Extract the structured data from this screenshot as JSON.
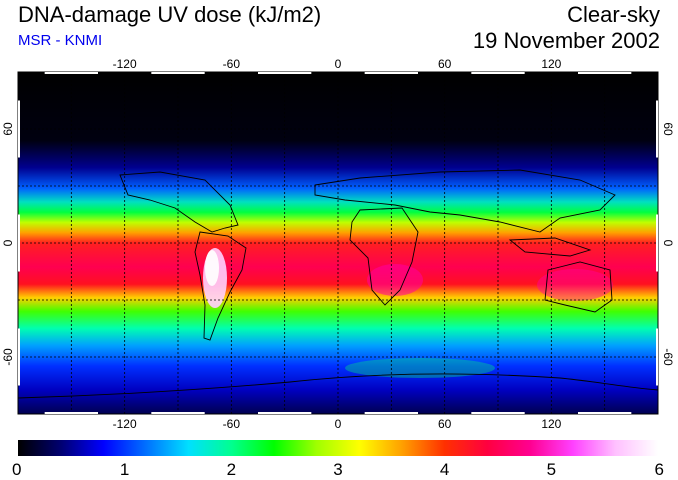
{
  "header": {
    "title": "DNA-damage UV dose (kJ/m2)",
    "source": "MSR - KNMI",
    "condition": "Clear-sky",
    "date": "19 November 2002"
  },
  "map": {
    "lon_ticks": [
      -120,
      -60,
      0,
      60,
      120
    ],
    "lat_ticks": [
      60,
      0,
      -60
    ],
    "lon_range": [
      -180,
      180
    ],
    "lat_range": [
      -90,
      90
    ],
    "gridlines": "dashed every 30 degrees"
  },
  "colorbar": {
    "ticks": [
      "0",
      "1",
      "2",
      "3",
      "4",
      "5",
      "6"
    ],
    "min": 0,
    "max": 6,
    "stops": [
      "#000000",
      "#000070",
      "#0000ff",
      "#0070ff",
      "#00e0ff",
      "#00ff90",
      "#00ff00",
      "#a0ff00",
      "#ffff00",
      "#ffa000",
      "#ff3000",
      "#ff0040",
      "#ff0090",
      "#ff40ff",
      "#ffc0ff",
      "#ffffff"
    ]
  }
}
